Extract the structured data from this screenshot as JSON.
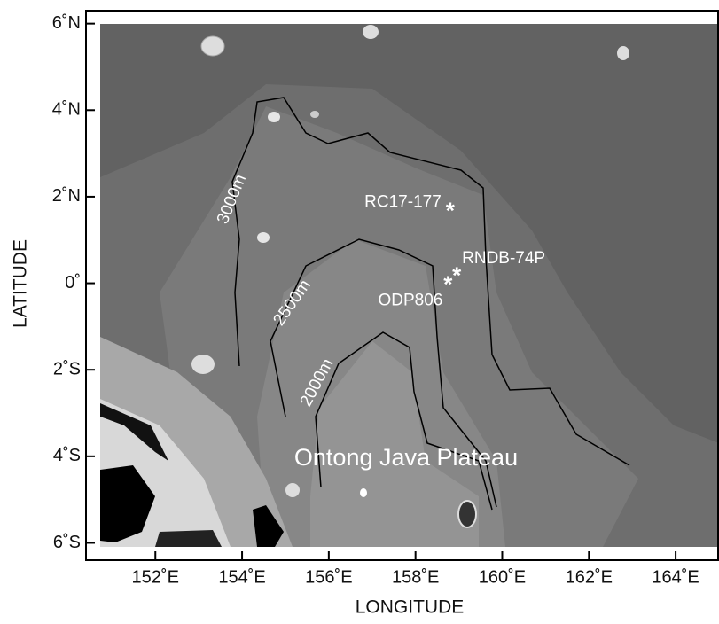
{
  "map": {
    "xaxis_label": "LONGITUDE",
    "yaxis_label": "LATITUDE",
    "xlim": [
      150.4,
      165
    ],
    "ylim": [
      -6.4,
      6.3
    ],
    "xticks": [
      {
        "value": 152,
        "label": "152˚E"
      },
      {
        "value": 154,
        "label": "154˚E"
      },
      {
        "value": 156,
        "label": "156˚E"
      },
      {
        "value": 158,
        "label": "158˚E"
      },
      {
        "value": 160,
        "label": "160˚E"
      },
      {
        "value": 162,
        "label": "162˚E"
      },
      {
        "value": 164,
        "label": "164˚E"
      }
    ],
    "yticks": [
      {
        "value": 6,
        "label": "6˚N"
      },
      {
        "value": 4,
        "label": "4˚N"
      },
      {
        "value": 2,
        "label": "2˚N"
      },
      {
        "value": 0,
        "label": "0˚"
      },
      {
        "value": -2,
        "label": "2˚S"
      },
      {
        "value": -4,
        "label": "4˚S"
      },
      {
        "value": -6,
        "label": "6˚S"
      }
    ],
    "contours": [
      {
        "label": "3000m"
      },
      {
        "label": "2500m"
      },
      {
        "label": "2000m"
      }
    ],
    "region_label": "Ontong Java Plateau",
    "sites": [
      {
        "name": "RC17-177",
        "lon": 158.8,
        "lat": 1.7
      },
      {
        "name": "RNDB-74P",
        "lon": 158.95,
        "lat": 0.2
      },
      {
        "name": "ODP806",
        "lon": 158.75,
        "lat": 0.0
      }
    ]
  }
}
